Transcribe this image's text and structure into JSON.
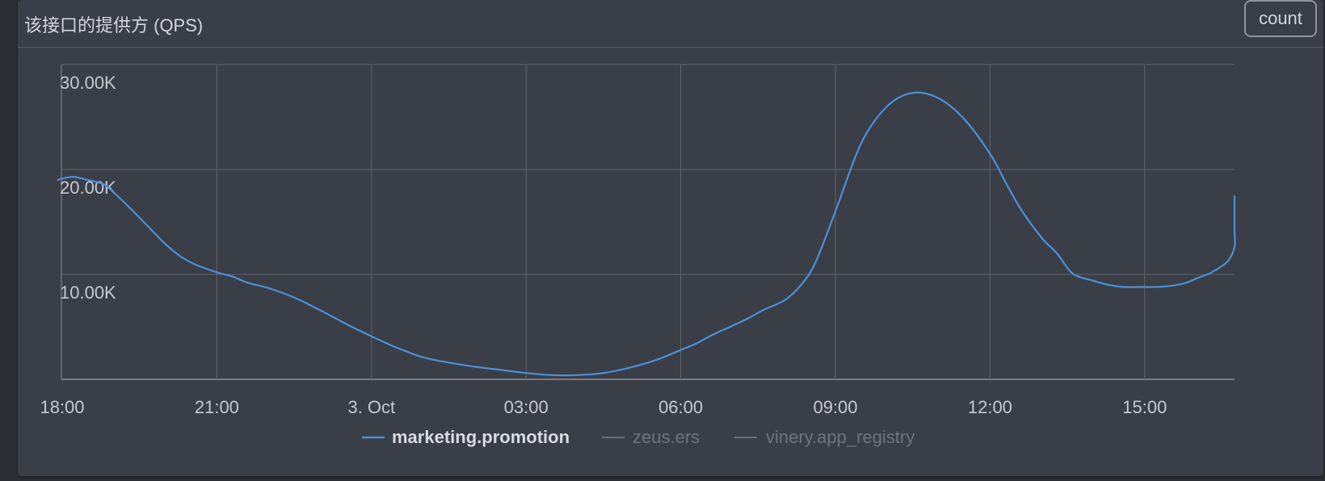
{
  "panel": {
    "title": "该接口的提供方 (QPS)",
    "count_label": "count"
  },
  "chart_data": {
    "type": "line",
    "title": "该接口的提供方 (QPS)",
    "xlabel": "",
    "ylabel": "",
    "x_ticks": [
      "18:00",
      "21:00",
      "3. Oct",
      "03:00",
      "06:00",
      "09:00",
      "12:00",
      "15:00"
    ],
    "y_ticks": [
      "10.00K",
      "20.00K",
      "30.00K"
    ],
    "ylim": [
      0,
      30000
    ],
    "xlim_hours": [
      0,
      24
    ],
    "grid": true,
    "legend": {
      "placement": "bottom-center",
      "entries": [
        {
          "name": "marketing.promotion",
          "active": true,
          "color": "#4a90d9"
        },
        {
          "name": "zeus.ers",
          "active": false,
          "color": "#777c84"
        },
        {
          "name": "vinery.app_registry",
          "active": false,
          "color": "#777c84"
        }
      ]
    },
    "series": [
      {
        "name": "marketing.promotion",
        "color": "#4a90d9",
        "x_hours": [
          -0.1,
          0.2,
          0.5,
          0.8,
          1.0,
          1.3,
          1.7,
          2.0,
          2.3,
          2.6,
          3.0,
          3.3,
          3.6,
          4.0,
          4.5,
          5.0,
          5.5,
          6.0,
          6.5,
          7.0,
          7.5,
          8.0,
          8.5,
          9.0,
          9.5,
          10.0,
          10.5,
          11.0,
          11.5,
          12.0,
          12.3,
          12.6,
          13.0,
          13.3,
          13.6,
          14.0,
          14.3,
          14.6,
          15.0,
          15.5,
          16.0,
          16.5,
          17.0,
          17.5,
          18.0,
          18.3,
          18.6,
          19.0,
          19.3,
          19.6,
          20.0,
          20.3,
          20.6,
          20.9,
          21.2,
          21.5,
          21.8,
          22.0,
          22.3,
          22.6,
          23.0,
          23.3,
          23.6,
          23.9,
          24.2,
          24.5
        ],
        "values": [
          19000,
          19300,
          19000,
          18600,
          17800,
          16400,
          14400,
          12900,
          11700,
          10900,
          10200,
          9800,
          9200,
          8700,
          7800,
          6600,
          5300,
          4100,
          3000,
          2100,
          1600,
          1200,
          900,
          600,
          400,
          400,
          600,
          1100,
          1800,
          2800,
          3400,
          4200,
          5100,
          5800,
          6600,
          7500,
          8800,
          11000,
          16000,
          22500,
          26000,
          27300,
          26800,
          24800,
          21500,
          18800,
          16200,
          13500,
          12000,
          10100,
          9400,
          9000,
          8800,
          8800,
          8800,
          8900,
          9200,
          9600,
          10200,
          11200,
          12600,
          14200,
          15500,
          16400,
          17000,
          17500
        ]
      }
    ]
  }
}
